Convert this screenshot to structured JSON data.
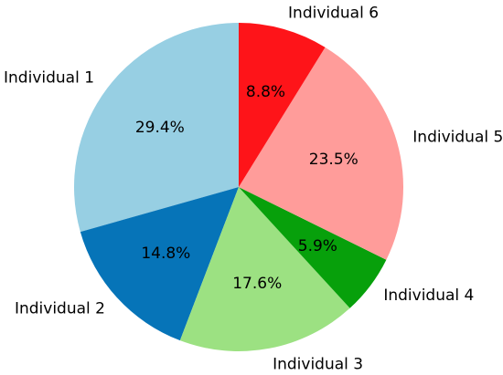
{
  "chart_data": {
    "type": "pie",
    "title": "",
    "start_angle_deg": 90,
    "direction": "counterclockwise",
    "slices": [
      {
        "label": "Individual 1",
        "value": 29.4,
        "pct_label": "29.4%",
        "color": "#97cfe3"
      },
      {
        "label": "Individual 2",
        "value": 14.8,
        "pct_label": "14.8%",
        "color": "#0674b8"
      },
      {
        "label": "Individual 3",
        "value": 17.6,
        "pct_label": "17.6%",
        "color": "#9ce182"
      },
      {
        "label": "Individual 4",
        "value": 5.9,
        "pct_label": "5.9%",
        "color": "#07a00b"
      },
      {
        "label": "Individual 5",
        "value": 23.5,
        "pct_label": "23.5%",
        "color": "#ff9c9a"
      },
      {
        "label": "Individual 6",
        "value": 8.8,
        "pct_label": "8.8%",
        "color": "#fe1419"
      }
    ]
  }
}
